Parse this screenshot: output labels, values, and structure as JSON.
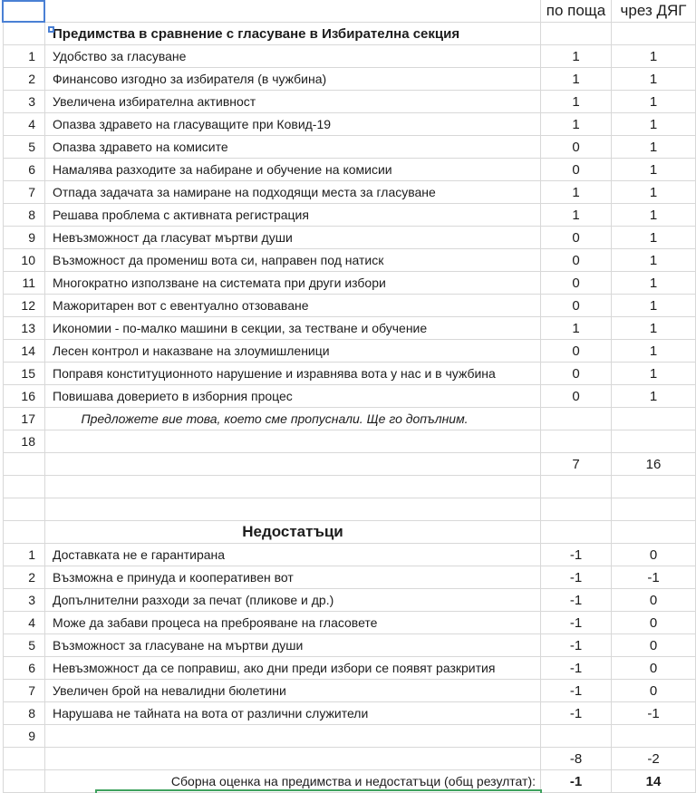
{
  "header": {
    "col_mail": "по поща",
    "col_deg": "чрез ДЯГ"
  },
  "advantages": {
    "title": "Предимства в сравнение с гласуване в Избирателна секция",
    "items": [
      {
        "n": 1,
        "text": "Удобство за гласуване",
        "mail": 1,
        "deg": 1
      },
      {
        "n": 2,
        "text": "Финансово изгодно за избирателя (в чужбина)",
        "mail": 1,
        "deg": 1
      },
      {
        "n": 3,
        "text": "Увеличена избирателна активност",
        "mail": 1,
        "deg": 1
      },
      {
        "n": 4,
        "text": "Опазва здравето на гласуващите при Ковид-19",
        "mail": 1,
        "deg": 1
      },
      {
        "n": 5,
        "text": "Опазва здравето на комисите",
        "mail": 0,
        "deg": 1
      },
      {
        "n": 6,
        "text": "Намалява разходите за набиране и обучение на комисии",
        "mail": 0,
        "deg": 1
      },
      {
        "n": 7,
        "text": "Отпада задачата за намиране на подходящи места за гласуване",
        "mail": 1,
        "deg": 1
      },
      {
        "n": 8,
        "text": "Решава проблема с активната регистрация",
        "mail": 1,
        "deg": 1
      },
      {
        "n": 9,
        "text": "Невъзможност да гласуват мъртви души",
        "mail": 0,
        "deg": 1
      },
      {
        "n": 10,
        "text": "Възможност да промениш вота си, направен под натиск",
        "mail": 0,
        "deg": 1
      },
      {
        "n": 11,
        "text": "Многократно използване на системата при други избори",
        "mail": 0,
        "deg": 1
      },
      {
        "n": 12,
        "text": "Мажоритарен вот с евентуално отзоваване",
        "mail": 0,
        "deg": 1
      },
      {
        "n": 13,
        "text": "Икономии - по-малко машини в секции, за тестване и обучение",
        "mail": 1,
        "deg": 1
      },
      {
        "n": 14,
        "text": "Лесен контрол и наказване на злоумишленици",
        "mail": 0,
        "deg": 1
      },
      {
        "n": 15,
        "text": "Поправя конституционното нарушение и изравнява вота у нас и в чужбина",
        "mail": 0,
        "deg": 1
      },
      {
        "n": 16,
        "text": "Повишава доверието в изборния процес",
        "mail": 0,
        "deg": 1
      }
    ],
    "note_row": {
      "n": 17,
      "text": "Предложете вие това, което сме пропуснали. Ще го допълним."
    },
    "empty_row_n": 18,
    "totals": {
      "mail": 7,
      "deg": 16
    }
  },
  "disadvantages": {
    "title": "Недостатъци",
    "items": [
      {
        "n": 1,
        "text": "Доставката не е гарантирана",
        "mail": -1,
        "deg": 0
      },
      {
        "n": 2,
        "text": "Възможна е принуда и кооперативен вот",
        "mail": -1,
        "deg": -1
      },
      {
        "n": 3,
        "text": "Допълнителни разходи за печат (пликове и др.)",
        "mail": -1,
        "deg": 0
      },
      {
        "n": 4,
        "text": "Може да забави процеса на преброяване на гласовете",
        "mail": -1,
        "deg": 0
      },
      {
        "n": 5,
        "text": "Възможност за гласуване на мъртви души",
        "mail": -1,
        "deg": 0
      },
      {
        "n": 6,
        "text": "Невъзможност да се поправиш, ако дни преди избори се появят разкрития",
        "mail": -1,
        "deg": 0
      },
      {
        "n": 7,
        "text": "Увеличен брой на невалидни бюлетини",
        "mail": -1,
        "deg": 0
      },
      {
        "n": 8,
        "text": "Нарушава не тайната на вота от различни служители",
        "mail": -1,
        "deg": -1
      }
    ],
    "empty_row_n": 9,
    "totals": {
      "mail": -8,
      "deg": -2
    }
  },
  "summary": {
    "label": "Сборна оценка на предимства и недостатъци (общ резултат):",
    "mail": -1,
    "deg": 14
  },
  "colors": {
    "selection_blue": "#4a80d4",
    "selection_green": "#3fa25f",
    "gridline": "#d8d8d8"
  }
}
